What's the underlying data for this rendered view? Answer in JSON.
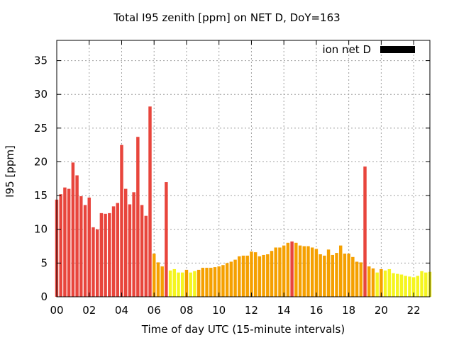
{
  "chart_data": {
    "type": "bar",
    "title": "Total I95 zenith [ppm] on NET D, DoY=163",
    "xlabel": "Time of day UTC (15-minute intervals)",
    "ylabel": "I95 [ppm]",
    "legend": {
      "label": "ion net D",
      "color": "#000000",
      "placement": "top-right"
    },
    "grid": true,
    "xlim": [
      0,
      23
    ],
    "ylim": [
      0,
      38
    ],
    "x_ticks": [
      0,
      2,
      4,
      6,
      8,
      10,
      12,
      14,
      16,
      18,
      20,
      22
    ],
    "x_tick_labels": [
      "00",
      "02",
      "04",
      "06",
      "08",
      "10",
      "12",
      "14",
      "16",
      "18",
      "20",
      "22"
    ],
    "y_ticks": [
      0,
      5,
      10,
      15,
      20,
      25,
      30,
      35
    ],
    "y_tick_labels": [
      "0",
      "5",
      "10",
      "15",
      "20",
      "25",
      "30",
      "35"
    ],
    "bar_interval_hours": 0.25,
    "colors": {
      "red": "#e8453c",
      "orange": "#f5a000",
      "yellow": "#f5f51f"
    },
    "values": [
      14.4,
      15.2,
      16.2,
      16.0,
      19.9,
      18.0,
      14.9,
      13.6,
      14.7,
      10.3,
      10.0,
      12.4,
      12.3,
      12.4,
      13.4,
      13.9,
      22.5,
      16.0,
      13.7,
      15.5,
      23.7,
      13.6,
      12.0,
      28.2,
      6.4,
      5.1,
      4.5,
      17.0,
      3.9,
      4.1,
      3.6,
      3.6,
      4.0,
      3.6,
      3.8,
      4.0,
      4.3,
      4.3,
      4.3,
      4.4,
      4.5,
      4.7,
      5.0,
      5.2,
      5.5,
      6.0,
      6.1,
      6.1,
      6.7,
      6.6,
      6.0,
      6.2,
      6.3,
      6.8,
      7.3,
      7.3,
      7.6,
      8.0,
      8.2,
      8.0,
      7.6,
      7.5,
      7.5,
      7.3,
      7.1,
      6.3,
      6.1,
      7.0,
      6.2,
      6.5,
      7.6,
      6.4,
      6.4,
      5.9,
      5.2,
      5.1,
      19.3,
      4.5,
      4.2,
      3.6,
      4.1,
      3.9,
      4.1,
      3.5,
      3.4,
      3.3,
      3.1,
      3.0,
      2.9,
      3.1,
      3.8,
      3.6,
      3.7
    ],
    "bar_colors": [
      "red",
      "red",
      "red",
      "red",
      "red",
      "red",
      "red",
      "red",
      "red",
      "red",
      "red",
      "red",
      "red",
      "red",
      "red",
      "red",
      "red",
      "red",
      "red",
      "red",
      "red",
      "red",
      "red",
      "red",
      "orange",
      "orange",
      "orange",
      "red",
      "yellow",
      "yellow",
      "yellow",
      "yellow",
      "orange",
      "yellow",
      "yellow",
      "orange",
      "orange",
      "orange",
      "orange",
      "orange",
      "orange",
      "orange",
      "orange",
      "orange",
      "orange",
      "orange",
      "orange",
      "orange",
      "orange",
      "orange",
      "orange",
      "orange",
      "orange",
      "orange",
      "orange",
      "orange",
      "orange",
      "orange",
      "red",
      "orange",
      "orange",
      "orange",
      "orange",
      "orange",
      "orange",
      "orange",
      "orange",
      "orange",
      "orange",
      "orange",
      "orange",
      "orange",
      "orange",
      "orange",
      "orange",
      "orange",
      "red",
      "orange",
      "orange",
      "yellow",
      "orange",
      "yellow",
      "yellow",
      "yellow",
      "yellow",
      "yellow",
      "yellow",
      "yellow",
      "yellow",
      "yellow",
      "yellow",
      "yellow",
      "yellow"
    ]
  }
}
